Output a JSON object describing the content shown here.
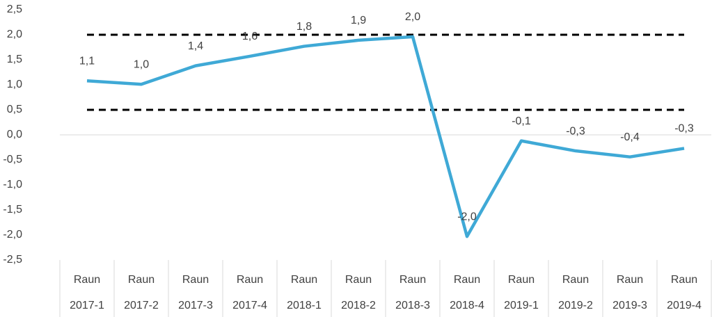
{
  "chart_data": {
    "type": "line",
    "categories": [
      [
        "Raun",
        "2017-1"
      ],
      [
        "Raun",
        "2017-2"
      ],
      [
        "Raun",
        "2017-3"
      ],
      [
        "Raun",
        "2017-4"
      ],
      [
        "Raun",
        "2018-1"
      ],
      [
        "Raun",
        "2018-2"
      ],
      [
        "Raun",
        "2018-3"
      ],
      [
        "Raun",
        "2018-4"
      ],
      [
        "Raun",
        "2019-1"
      ],
      [
        "Raun",
        "2019-2"
      ],
      [
        "Raun",
        "2019-3"
      ],
      [
        "Raun",
        "2019-4"
      ]
    ],
    "values": [
      1.08,
      1.01,
      1.38,
      1.57,
      1.77,
      1.89,
      1.96,
      -2.03,
      -0.12,
      -0.32,
      -0.44,
      -0.27
    ],
    "value_labels": [
      "1,1",
      "1,0",
      "1,4",
      "1,6",
      "1,8",
      "1,9",
      "2,0",
      "-2,0",
      "-0,1",
      "-0,3",
      "-0,4",
      "-0,3"
    ],
    "color": "#3fa9d6",
    "ylim": [
      -2.5,
      2.5
    ],
    "yticks": [
      {
        "value": -2.5,
        "label": "-2,5"
      },
      {
        "value": -2,
        "label": "-2,0"
      },
      {
        "value": -1.5,
        "label": "-1,5"
      },
      {
        "value": -1,
        "label": "-1,0"
      },
      {
        "value": -0.5,
        "label": "-0,5"
      },
      {
        "value": 0,
        "label": "0,0"
      },
      {
        "value": 0.5,
        "label": "0,5"
      },
      {
        "value": 1,
        "label": "1,0"
      },
      {
        "value": 1.5,
        "label": "1,5"
      },
      {
        "value": 2,
        "label": "2,0"
      },
      {
        "value": 2.5,
        "label": "2,5"
      }
    ],
    "hlines": [
      2,
      0.5
    ],
    "hline_color": "#000000",
    "hline_style": "dashed",
    "grid": false
  }
}
